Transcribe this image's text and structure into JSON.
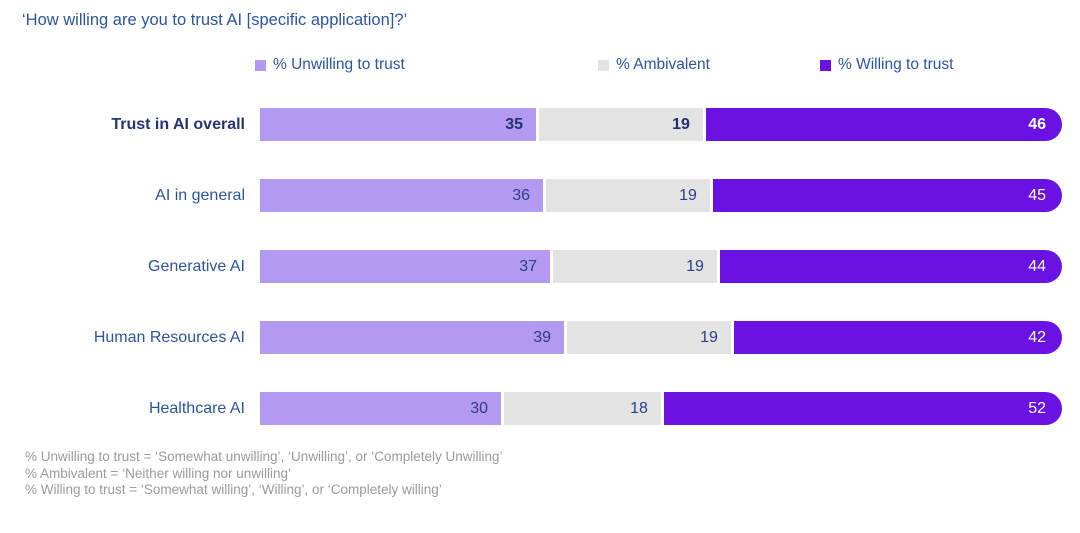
{
  "chart_data": {
    "type": "bar",
    "orientation": "horizontal-stacked",
    "title": "‘How willing are you to trust AI [specific application]?’",
    "categories": [
      "Trust in AI overall",
      "AI in general",
      "Generative AI",
      "Human Resources AI",
      "Healthcare AI"
    ],
    "series": [
      {
        "name": "% Unwilling to trust",
        "color": "#B29AF2",
        "values": [
          35,
          36,
          37,
          39,
          30
        ]
      },
      {
        "name": "% Ambivalent",
        "color": "#E4E3E3",
        "values": [
          19,
          19,
          19,
          19,
          18
        ]
      },
      {
        "name": "% Willing to trust",
        "color": "#6A12E4",
        "values": [
          46,
          45,
          44,
          42,
          52
        ]
      }
    ],
    "xlim": [
      0,
      100
    ],
    "emphasized_row": 0,
    "legend_position": "top",
    "grid": false,
    "footnotes": [
      "% Unwilling to trust = ‘Somewhat unwilling’, ‘Unwilling’, or ‘Completely Unwilling’",
      "% Ambivalent = ‘Neither willing nor unwilling’",
      "% Willing to trust = ‘Somewhat willing’, ‘Willing’, or ‘Completely willing’"
    ]
  },
  "palette": {
    "heading_blue": "#2B55A0",
    "value_navy": "#293F87",
    "emphasis_navy": "#253474",
    "footnote_gray": "#9A9A9A",
    "background": "#FFFFFF"
  }
}
